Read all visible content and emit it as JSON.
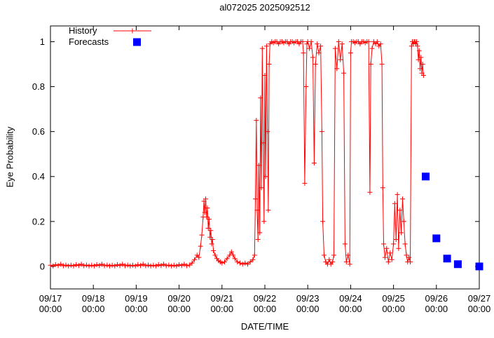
{
  "chart_data": {
    "type": "line",
    "title": "al072025 2025092512",
    "xlabel": "DATE/TIME",
    "ylabel": "Eye Probability",
    "x_unit": "days since 09/17 00:00",
    "xlim": [
      0,
      10
    ],
    "ylim": [
      -0.1,
      1.07
    ],
    "grid": false,
    "background": "#ffffff",
    "axis_color": "#000000",
    "legend_position": "top-left-inside",
    "x_ticks": [
      {
        "pos": 0,
        "date": "09/17",
        "time": "00:00"
      },
      {
        "pos": 1,
        "date": "09/18",
        "time": "00:00"
      },
      {
        "pos": 2,
        "date": "09/19",
        "time": "00:00"
      },
      {
        "pos": 3,
        "date": "09/20",
        "time": "00:00"
      },
      {
        "pos": 4,
        "date": "09/21",
        "time": "00:00"
      },
      {
        "pos": 5,
        "date": "09/22",
        "time": "00:00"
      },
      {
        "pos": 6,
        "date": "09/23",
        "time": "00:00"
      },
      {
        "pos": 7,
        "date": "09/24",
        "time": "00:00"
      },
      {
        "pos": 8,
        "date": "09/25",
        "time": "00:00"
      },
      {
        "pos": 9,
        "date": "09/26",
        "time": "00:00"
      },
      {
        "pos": 10,
        "date": "09/27",
        "time": "00:00"
      }
    ],
    "y_ticks": [
      {
        "pos": 0,
        "label": "0"
      },
      {
        "pos": 0.2,
        "label": "0.2"
      },
      {
        "pos": 0.4,
        "label": "0.4"
      },
      {
        "pos": 0.6,
        "label": "0.6"
      },
      {
        "pos": 0.8,
        "label": "0.8"
      },
      {
        "pos": 1,
        "label": "1"
      }
    ],
    "series": [
      {
        "name": "History",
        "color": "#ff0000",
        "marker": "plus",
        "line": true,
        "points": [
          [
            0,
            0.005
          ],
          [
            0.06,
            0.002
          ],
          [
            0.12,
            0.008
          ],
          [
            0.18,
            0.004
          ],
          [
            0.24,
            0.01
          ],
          [
            0.3,
            0.003
          ],
          [
            0.36,
            0.006
          ],
          [
            0.42,
            0.002
          ],
          [
            0.48,
            0.005
          ],
          [
            0.54,
            0.002
          ],
          [
            0.6,
            0.008
          ],
          [
            0.66,
            0.004
          ],
          [
            0.72,
            0.01
          ],
          [
            0.78,
            0.003
          ],
          [
            0.84,
            0.006
          ],
          [
            0.9,
            0.002
          ],
          [
            0.96,
            0.005
          ],
          [
            1.02,
            0.002
          ],
          [
            1.08,
            0.008
          ],
          [
            1.14,
            0.004
          ],
          [
            1.2,
            0.01
          ],
          [
            1.26,
            0.003
          ],
          [
            1.32,
            0.006
          ],
          [
            1.38,
            0.002
          ],
          [
            1.44,
            0.005
          ],
          [
            1.5,
            0.002
          ],
          [
            1.56,
            0.008
          ],
          [
            1.62,
            0.004
          ],
          [
            1.68,
            0.01
          ],
          [
            1.74,
            0.003
          ],
          [
            1.8,
            0.006
          ],
          [
            1.86,
            0.002
          ],
          [
            1.92,
            0.005
          ],
          [
            1.98,
            0.002
          ],
          [
            2.04,
            0.008
          ],
          [
            2.1,
            0.004
          ],
          [
            2.16,
            0.01
          ],
          [
            2.22,
            0.003
          ],
          [
            2.28,
            0.006
          ],
          [
            2.34,
            0.002
          ],
          [
            2.4,
            0.005
          ],
          [
            2.46,
            0.002
          ],
          [
            2.52,
            0.008
          ],
          [
            2.58,
            0.004
          ],
          [
            2.64,
            0.01
          ],
          [
            2.7,
            0.003
          ],
          [
            2.76,
            0.006
          ],
          [
            2.82,
            0.002
          ],
          [
            2.88,
            0.005
          ],
          [
            2.94,
            0.002
          ],
          [
            3.0,
            0.008
          ],
          [
            3.06,
            0.004
          ],
          [
            3.12,
            0.01
          ],
          [
            3.18,
            0.003
          ],
          [
            3.24,
            0.006
          ],
          [
            3.3,
            0.015
          ],
          [
            3.36,
            0.03
          ],
          [
            3.42,
            0.05
          ],
          [
            3.46,
            0.04
          ],
          [
            3.5,
            0.09
          ],
          [
            3.53,
            0.14
          ],
          [
            3.56,
            0.22
          ],
          [
            3.58,
            0.29
          ],
          [
            3.6,
            0.24
          ],
          [
            3.62,
            0.3
          ],
          [
            3.64,
            0.22
          ],
          [
            3.66,
            0.26
          ],
          [
            3.68,
            0.17
          ],
          [
            3.7,
            0.21
          ],
          [
            3.72,
            0.13
          ],
          [
            3.74,
            0.16
          ],
          [
            3.76,
            0.1
          ],
          [
            3.78,
            0.12
          ],
          [
            3.8,
            0.07
          ],
          [
            3.84,
            0.05
          ],
          [
            3.88,
            0.035
          ],
          [
            3.92,
            0.025
          ],
          [
            3.96,
            0.02
          ],
          [
            4.0,
            0.015
          ],
          [
            4.06,
            0.02
          ],
          [
            4.12,
            0.035
          ],
          [
            4.18,
            0.05
          ],
          [
            4.22,
            0.065
          ],
          [
            4.26,
            0.05
          ],
          [
            4.3,
            0.035
          ],
          [
            4.36,
            0.02
          ],
          [
            4.42,
            0.015
          ],
          [
            4.48,
            0.01
          ],
          [
            4.54,
            0.015
          ],
          [
            4.6,
            0.01
          ],
          [
            4.66,
            0.02
          ],
          [
            4.72,
            0.03
          ],
          [
            4.76,
            0.05
          ],
          [
            4.78,
            0.3
          ],
          [
            4.8,
            0.65
          ],
          [
            4.82,
            0.25
          ],
          [
            4.84,
            0.12
          ],
          [
            4.86,
            0.45
          ],
          [
            4.88,
            0.15
          ],
          [
            4.9,
            0.75
          ],
          [
            4.92,
            0.35
          ],
          [
            4.94,
            0.97
          ],
          [
            4.96,
            0.55
          ],
          [
            4.98,
            0.2
          ],
          [
            5.0,
            0.85
          ],
          [
            5.02,
            0.4
          ],
          [
            5.04,
            0.98
          ],
          [
            5.06,
            0.6
          ],
          [
            5.08,
            0.25
          ],
          [
            5.1,
            0.9
          ],
          [
            5.12,
            0.99
          ],
          [
            5.16,
            1
          ],
          [
            5.2,
            0.995
          ],
          [
            5.24,
            1
          ],
          [
            5.28,
            1
          ],
          [
            5.32,
            0.99
          ],
          [
            5.36,
            1
          ],
          [
            5.4,
            1
          ],
          [
            5.44,
            0.995
          ],
          [
            5.48,
            1
          ],
          [
            5.52,
            1
          ],
          [
            5.56,
            0.99
          ],
          [
            5.6,
            1
          ],
          [
            5.64,
            1
          ],
          [
            5.68,
            0.995
          ],
          [
            5.72,
            1
          ],
          [
            5.76,
            1
          ],
          [
            5.8,
            0.99
          ],
          [
            5.84,
            1
          ],
          [
            5.88,
            1
          ],
          [
            5.9,
            0.95
          ],
          [
            5.93,
            0.37
          ],
          [
            5.96,
            0.8
          ],
          [
            5.98,
            0.99
          ],
          [
            6.0,
            1
          ],
          [
            6.04,
            0.97
          ],
          [
            6.08,
            1
          ],
          [
            6.12,
            0.93
          ],
          [
            6.15,
            0.46
          ],
          [
            6.18,
            0.9
          ],
          [
            6.22,
            0.99
          ],
          [
            6.26,
            0.95
          ],
          [
            6.3,
            0.98
          ],
          [
            6.33,
            0.6
          ],
          [
            6.35,
            0.2
          ],
          [
            6.38,
            0.05
          ],
          [
            6.42,
            0.02
          ],
          [
            6.46,
            0.01
          ],
          [
            6.5,
            0.03
          ],
          [
            6.54,
            0.01
          ],
          [
            6.58,
            0.02
          ],
          [
            6.61,
            0.05
          ],
          [
            6.64,
            0.97
          ],
          [
            6.68,
            0.88
          ],
          [
            6.72,
            1
          ],
          [
            6.76,
            0.92
          ],
          [
            6.8,
            0.99
          ],
          [
            6.84,
            0.86
          ],
          [
            6.87,
            0.1
          ],
          [
            6.9,
            0.02
          ],
          [
            6.94,
            0.05
          ],
          [
            6.98,
            0.01
          ],
          [
            7.0,
            0.95
          ],
          [
            7.02,
            1
          ],
          [
            7.06,
            1
          ],
          [
            7.1,
            0.995
          ],
          [
            7.14,
            1
          ],
          [
            7.18,
            1
          ],
          [
            7.22,
            0.99
          ],
          [
            7.26,
            1
          ],
          [
            7.3,
            1
          ],
          [
            7.34,
            0.995
          ],
          [
            7.38,
            1
          ],
          [
            7.42,
            1
          ],
          [
            7.45,
            0.33
          ],
          [
            7.47,
            0.9
          ],
          [
            7.5,
            0.97
          ],
          [
            7.54,
            1
          ],
          [
            7.58,
            0.99
          ],
          [
            7.62,
            1
          ],
          [
            7.66,
            0.98
          ],
          [
            7.7,
            0.99
          ],
          [
            7.73,
            0.9
          ],
          [
            7.75,
            0.35
          ],
          [
            7.77,
            0.1
          ],
          [
            7.8,
            0.04
          ],
          [
            7.84,
            0.08
          ],
          [
            7.88,
            0.02
          ],
          [
            7.92,
            0.06
          ],
          [
            7.96,
            0.03
          ],
          [
            8.0,
            0.1
          ],
          [
            8.03,
            0.28
          ],
          [
            8.06,
            0.12
          ],
          [
            8.09,
            0.32
          ],
          [
            8.12,
            0.08
          ],
          [
            8.15,
            0.25
          ],
          [
            8.18,
            0.15
          ],
          [
            8.21,
            0.3
          ],
          [
            8.24,
            0.2
          ],
          [
            8.27,
            0.1
          ],
          [
            8.3,
            0.05
          ],
          [
            8.33,
            0.02
          ],
          [
            8.36,
            0.04
          ],
          [
            8.39,
            0.02
          ],
          [
            8.42,
            0.98
          ],
          [
            8.44,
            1
          ],
          [
            8.46,
            0.99
          ],
          [
            8.48,
            1
          ],
          [
            8.5,
            1
          ],
          [
            8.52,
            0.99
          ],
          [
            8.54,
            1
          ],
          [
            8.56,
            0.98
          ],
          [
            8.58,
            0.92
          ],
          [
            8.6,
            0.96
          ],
          [
            8.62,
            0.88
          ],
          [
            8.64,
            0.93
          ],
          [
            8.66,
            0.86
          ],
          [
            8.68,
            0.9
          ],
          [
            8.7,
            0.85
          ]
        ]
      },
      {
        "name": "Forecasts",
        "color": "#0000ff",
        "marker": "square",
        "line": false,
        "points": [
          [
            8.75,
            0.4
          ],
          [
            9.0,
            0.125
          ],
          [
            9.25,
            0.035
          ],
          [
            9.5,
            0.01
          ],
          [
            10.0,
            0.0
          ]
        ]
      }
    ]
  }
}
